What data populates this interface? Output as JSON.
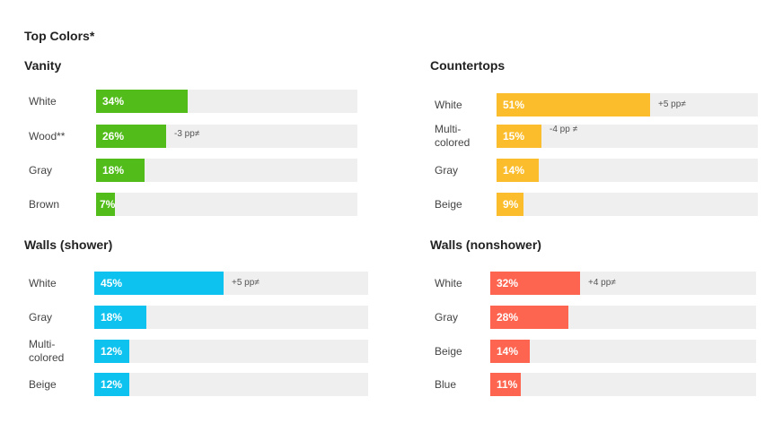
{
  "header": {
    "title": "Top Colors*"
  },
  "chart_data": [
    {
      "type": "bar",
      "title": "Vanity",
      "color": "#52bd1a",
      "xlim": [
        0,
        100
      ],
      "categories": [
        "White",
        "Wood**",
        "Gray",
        "Brown"
      ],
      "values": [
        34,
        26,
        18,
        7
      ],
      "value_labels": [
        "34%",
        "26%",
        "18%",
        "7%"
      ],
      "deltas": [
        "",
        "-3 pp≠",
        "",
        ""
      ]
    },
    {
      "type": "bar",
      "title": "Countertops",
      "color": "#fbbd2b",
      "xlim": [
        0,
        100
      ],
      "categories": [
        "White",
        "Multi-\ncolored",
        "Gray",
        "Beige"
      ],
      "values": [
        51,
        15,
        14,
        9
      ],
      "value_labels": [
        "51%",
        "15%",
        "14%",
        "9%"
      ],
      "deltas": [
        "+5 pp≠",
        "-4 pp ≠",
        "",
        ""
      ]
    },
    {
      "type": "bar",
      "title": "Walls (shower)",
      "color": "#0dc2ee",
      "xlim": [
        0,
        100
      ],
      "categories": [
        "White",
        "Gray",
        "Multi-\ncolored",
        "Beige"
      ],
      "values": [
        45,
        18,
        12,
        12
      ],
      "value_labels": [
        "45%",
        "18%",
        "12%",
        "12%"
      ],
      "deltas": [
        "+5 pp≠",
        "",
        "",
        ""
      ]
    },
    {
      "type": "bar",
      "title": "Walls (nonshower)",
      "color": "#fd6550",
      "xlim": [
        0,
        100
      ],
      "categories": [
        "White",
        "Gray",
        "Beige",
        "Blue"
      ],
      "values": [
        32,
        28,
        14,
        11
      ],
      "value_labels": [
        "32%",
        "28%",
        "14%",
        "11%"
      ],
      "deltas": [
        "+4 pp≠",
        "",
        "",
        ""
      ]
    }
  ]
}
